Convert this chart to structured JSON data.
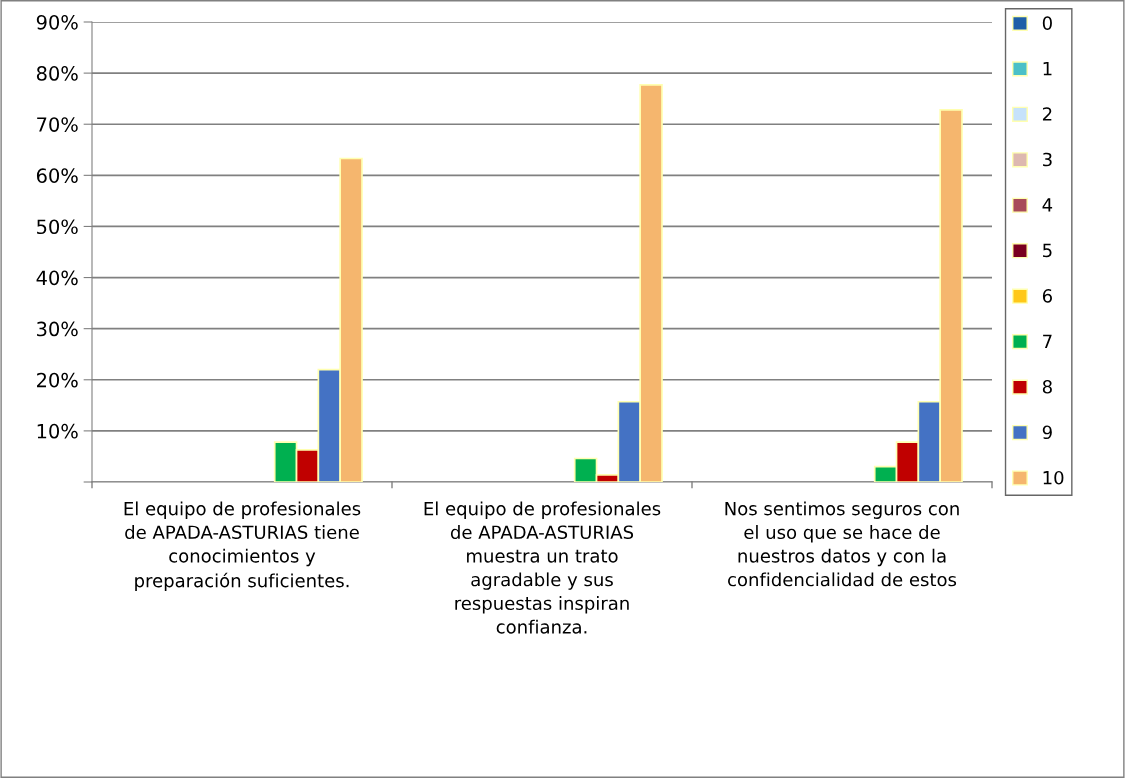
{
  "chart_data": {
    "type": "bar",
    "categories": [
      "El equipo de profesionales\nde APADA-ASTURIAS tiene\nconocimientos y\npreparación suficientes.",
      "El equipo de profesionales\nde APADA-ASTURIAS\nmuestra un trato\nagradable y sus\nrespuestas inspiran\nconfianza.",
      "Nos sentimos seguros con\nel uso que se hace de\nnuestros datos y con la\nconfidencialidad de estos"
    ],
    "series": [
      {
        "name": "0",
        "color": "#1f5fa8",
        "values": [
          0,
          0,
          0
        ]
      },
      {
        "name": "1",
        "color": "#4bc0c8",
        "values": [
          0,
          0,
          0
        ]
      },
      {
        "name": "2",
        "color": "#c6e2fa",
        "values": [
          0,
          0,
          0
        ]
      },
      {
        "name": "3",
        "color": "#ddb8b0",
        "values": [
          0,
          0,
          0
        ]
      },
      {
        "name": "4",
        "color": "#a84b5a",
        "values": [
          0,
          0,
          0
        ]
      },
      {
        "name": "5",
        "color": "#7a0020",
        "values": [
          0,
          0,
          0
        ]
      },
      {
        "name": "6",
        "color": "#ffc819",
        "values": [
          0,
          0,
          0
        ]
      },
      {
        "name": "7",
        "color": "#00b050",
        "values": [
          7.8,
          4.6,
          3.0
        ]
      },
      {
        "name": "8",
        "color": "#c00000",
        "values": [
          6.3,
          1.4,
          7.8
        ]
      },
      {
        "name": "9",
        "color": "#4472c4",
        "values": [
          22.0,
          15.7,
          15.7
        ]
      },
      {
        "name": "10",
        "color": "#f5b66e",
        "values": [
          63.3,
          77.7,
          72.8
        ]
      }
    ],
    "ylim": [
      0,
      90
    ],
    "yticks": [
      {
        "value": 0,
        "label": null
      },
      {
        "value": 10,
        "label": "10%"
      },
      {
        "value": 20,
        "label": "20%"
      },
      {
        "value": 30,
        "label": "30%"
      },
      {
        "value": 40,
        "label": "40%"
      },
      {
        "value": 50,
        "label": "50%"
      },
      {
        "value": 60,
        "label": "60%"
      },
      {
        "value": 70,
        "label": "70%"
      },
      {
        "value": 80,
        "label": "80%"
      },
      {
        "value": 90,
        "label": "90%"
      }
    ],
    "grid": "y",
    "legend": "right"
  }
}
